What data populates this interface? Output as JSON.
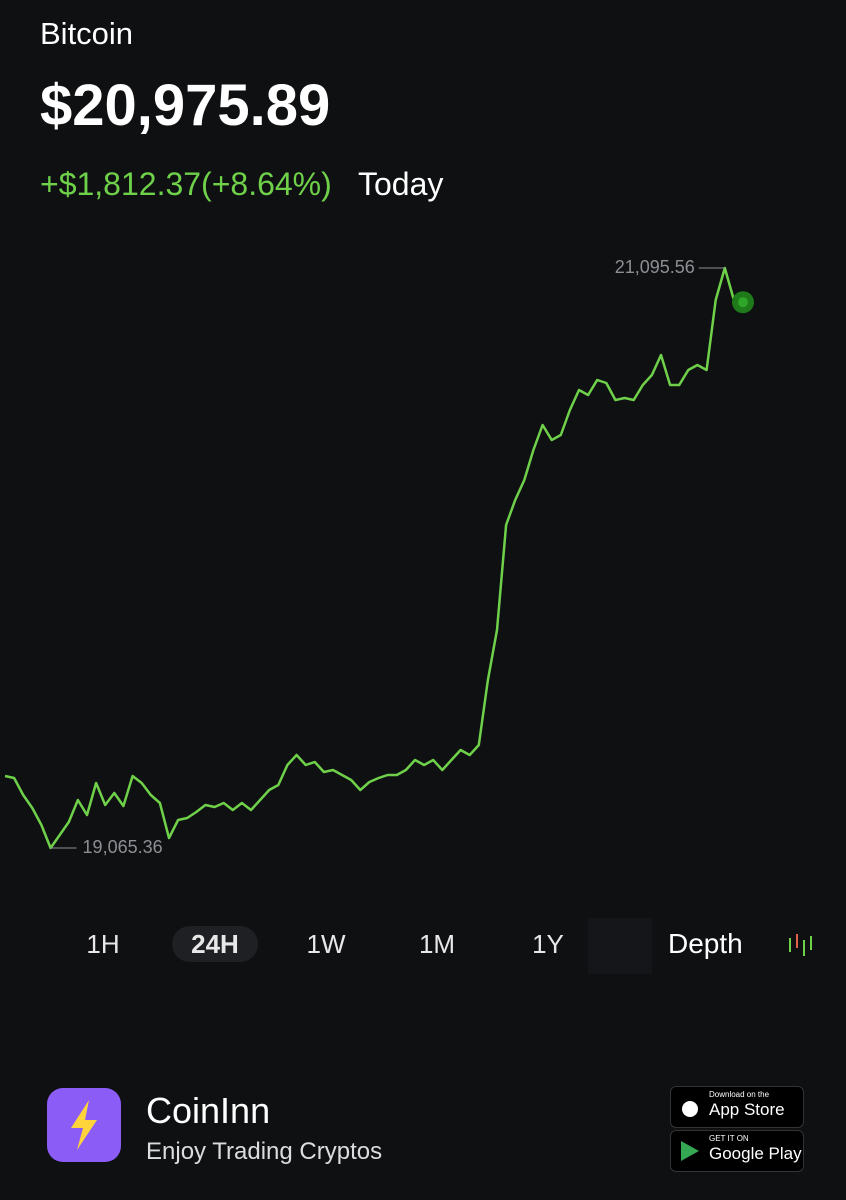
{
  "header": {
    "name": "Bitcoin",
    "price": "$20,975.89",
    "change": "+$1,812.37(+8.64%)",
    "period": "Today"
  },
  "chart_data": {
    "type": "line",
    "color": "#6fd14a",
    "values": [
      19317.38,
      19310.38,
      19250.88,
      19205.37,
      19145.87,
      19065.36,
      19110.86,
      19156.37,
      19233.37,
      19180.87,
      19292.88,
      19215.87,
      19257.88,
      19212.37,
      19317.38,
      19292.88,
      19250.88,
      19222.87,
      19100.36,
      19163.37,
      19170.37,
      19191.37,
      19215.87,
      19208.87,
      19222.87,
      19198.37,
      19222.87,
      19198.37,
      19233.37,
      19268.38,
      19285.88,
      19355.88,
      19390.89,
      19355.88,
      19366.38,
      19331.38,
      19338.38,
      19320.88,
      19303.38,
      19268.38,
      19296.38,
      19310.38,
      19320.88,
      19320.88,
      19338.38,
      19373.38,
      19355.88,
      19373.38,
      19338.38,
      19373.38,
      19408.39,
      19390.89,
      19425.89,
      19653.46,
      19828.46,
      20195.96,
      20283.46,
      20353.46,
      20458.46,
      20545.96,
      20493.46,
      20510.96,
      20598.46,
      20668.46,
      20650.96,
      20703.46,
      20692.96,
      20633.46,
      20640.46,
      20633.46,
      20685.96,
      20720.96,
      20790.96,
      20685.96,
      20685.96,
      20738.46,
      20755.96,
      20738.46,
      20983.56,
      21095.56,
      20983.56,
      20975.89
    ],
    "annotations": [
      {
        "value": 21095.56,
        "label": "21,095.56"
      },
      {
        "value": 19065.36,
        "label": "19,065.36"
      }
    ]
  },
  "ranges": {
    "options": [
      "1H",
      "24H",
      "1W",
      "1M",
      "1Y"
    ],
    "selected_index": 1,
    "depth": "Depth"
  },
  "footer": {
    "app": "CoinInn",
    "tagline": "Enjoy Trading Cryptos",
    "app_store": {
      "small": "Download on the",
      "big": "App Store"
    },
    "google_play": {
      "small": "GET IT ON",
      "big": "Google Play"
    }
  }
}
